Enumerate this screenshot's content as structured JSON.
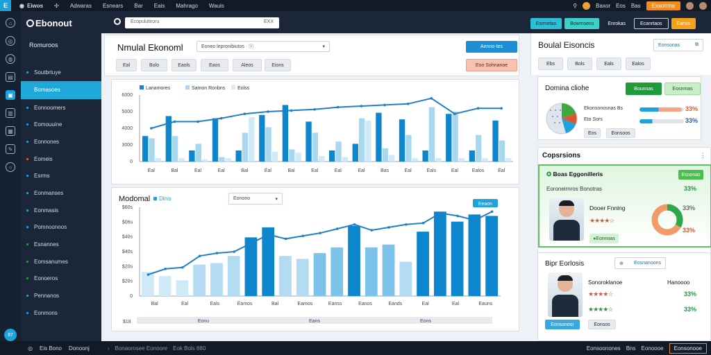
{
  "topbar": {
    "logo": "E",
    "brand": "Eiwos",
    "menu": [
      "Adwaras",
      "Esnears",
      "Bar",
      "Eais",
      "Mahrago",
      "Wauis"
    ],
    "account": "Baxor",
    "account2": "Eos",
    "account3": "Bas",
    "cta": "Exsotrms"
  },
  "header": {
    "app_name": "Ebonout",
    "search_placeholder": "Ecopulutiroru",
    "search_shortcut": "EXX",
    "buttons": [
      "Esrmetas",
      "Bowmsens",
      "Enrokas",
      "Ecanrtaos",
      "Earsis"
    ]
  },
  "sidebar": {
    "title": "Romuroos",
    "items": [
      {
        "label": "Soutbrtuye",
        "active": false
      },
      {
        "label": "Bomasoes",
        "active": true
      },
      {
        "label": "Eonnoomers",
        "active": false
      },
      {
        "label": "Eomouuine",
        "active": false
      },
      {
        "label": "Eonnones",
        "active": false
      },
      {
        "label": "Eomeis",
        "active": false
      },
      {
        "label": "Esrms",
        "active": false
      },
      {
        "label": "Eonmanses",
        "active": false
      },
      {
        "label": "Eonmasis",
        "active": false
      },
      {
        "label": "Pomnoonoos",
        "active": false
      },
      {
        "label": "Esnannes",
        "active": false
      },
      {
        "label": "Eomsanumes",
        "active": false
      },
      {
        "label": "Eonoeros",
        "active": false
      },
      {
        "label": "Pennanos",
        "active": false
      },
      {
        "label": "Eonmons",
        "active": false
      }
    ]
  },
  "main": {
    "title": "Nmulal Ekonoml",
    "dropdown": "Eoneo lepronibiutos · ⓥ",
    "action_btn": "Aenno·tes",
    "chips": [
      "Eal",
      "Bolo",
      "Eaols",
      "Eaos",
      "Aleos",
      "Eions"
    ],
    "alert_btn": "Eoo Sohnanoe",
    "chart1": {
      "legend": [
        "Lanamores",
        "Samon Ronbns",
        "Eolss"
      ],
      "ylabels": [
        "6000",
        "5000",
        "4000",
        "3000",
        "0"
      ],
      "xlabels": [
        "Eal",
        "Bal",
        "Eal",
        "Eal",
        "Bal",
        "Eal",
        "Bal",
        "Eal",
        "Eal",
        "Eal",
        "Bas",
        "Eal",
        "Eals",
        "Eal",
        "Ealos",
        "Eal"
      ]
    },
    "panel2_title": "Modomal",
    "panel2_chip": "Dlnis",
    "panel2_dropdown": "Eonono",
    "chart2": {
      "ylabels": [
        "$60s",
        "$06s",
        "$40s",
        "$40s",
        "$20s",
        "$20s",
        "0"
      ],
      "xlabels": [
        "Bal",
        "Eal",
        "Eals",
        "Eamos",
        "Bal",
        "Eamos",
        "Eanss",
        "Eanos",
        "Eands",
        "Eal",
        "Eal",
        "Eauns"
      ],
      "annotation": "Eeaon",
      "footer": [
        "Eonu",
        "Eans",
        "Eons"
      ]
    }
  },
  "chart_data": [
    {
      "type": "bar",
      "title": "",
      "series": [
        {
          "name": "Lanamores",
          "values": [
            2300,
            4100,
            1000,
            3900,
            1000,
            4200,
            5100,
            3600,
            1000,
            1600,
            4400,
            3800,
            1000,
            4300,
            1000,
            3700
          ]
        },
        {
          "name": "Samon Ronbns",
          "values": [
            2100,
            2300,
            1600,
            400,
            2600,
            3100,
            1100,
            2600,
            1800,
            3900,
            1200,
            2400,
            4900,
            4500,
            2400,
            1900
          ]
        },
        {
          "name": "Eolss",
          "values": [
            300,
            300,
            200,
            300,
            4000,
            900,
            800,
            500,
            400,
            3700,
            600,
            300,
            300,
            300,
            300,
            300
          ]
        }
      ],
      "line": [
        3000,
        3600,
        3600,
        3900,
        4300,
        4500,
        4600,
        4700,
        4900,
        5000,
        5100,
        5200,
        5700,
        4300,
        4800,
        4800
      ],
      "ylim": [
        0,
        6000
      ]
    },
    {
      "type": "bar",
      "title": "",
      "values": [
        1700,
        1400,
        1100,
        2200,
        2300,
        2800,
        4100,
        4800,
        2800,
        2600,
        3000,
        3400,
        4900,
        3400,
        3600,
        2400,
        4500,
        5900,
        5200,
        5700,
        5600
      ],
      "line": [
        1500,
        1900,
        2000,
        2800,
        3000,
        3100,
        3700,
        4300,
        4000,
        4200,
        4400,
        4700,
        5000,
        4600,
        4800,
        5000,
        5100,
        5800,
        5600,
        5300,
        5900
      ],
      "ylim": [
        0,
        6200
      ]
    }
  ],
  "right": {
    "title": "Boulal Eisoncis",
    "head_btn": "Eonsonas",
    "chips": [
      "Ebs",
      "Bols",
      "Eals",
      "Ealos"
    ],
    "card1": {
      "title": "Domina cliohe",
      "btn_green": "Bounnas",
      "btn_light": "Eosnmas",
      "legend1": "Ekonsonosnas Bs",
      "legend2": "Eto Sors",
      "pct1": "33%",
      "pct2": "33%",
      "progress1": 0.96,
      "progress2": 0.72,
      "small_btns": [
        "Eos",
        "Eonsoos"
      ]
    },
    "card2": {
      "title": "Copsrsions",
      "heading": "Boas Eggonilleris",
      "heading_btn": "Esnonas",
      "subtitle": "Eoroneirnros Bonotras",
      "pct_top": "33%",
      "person": "Dooer Fnnlng",
      "rating": 4,
      "donut_label": "33%",
      "donut_value": 0.33,
      "pct_bottom": "33%",
      "badge": "Eonnoas"
    },
    "card3": {
      "title": "Bipr Eorlosis",
      "header_btn": "Eosnanoons",
      "person": "Sonoroklanoe",
      "role": "Hanoooo",
      "rating1": 4,
      "rating2": 4,
      "pct1": "33%",
      "pct2": "33%",
      "btns": [
        "Eonsonosr",
        "Eonsos"
      ]
    }
  },
  "bottombar": {
    "items": [
      "Eis Bono",
      "Donoonj"
    ],
    "mid": [
      "Bonaorosee Eonoore",
      "Eok Bols 880"
    ],
    "right": [
      "Eonsoonones",
      "Bns",
      "Eonoooe"
    ],
    "btn": "Eonsonooe"
  },
  "colors": {
    "accent": "#1aa3dc",
    "bar_dark": "#0e86cd",
    "bar_light": "#a8d8f0",
    "bar_pale": "#cfe9f7",
    "green": "#1f9a3a",
    "orange": "#f08c1c"
  }
}
